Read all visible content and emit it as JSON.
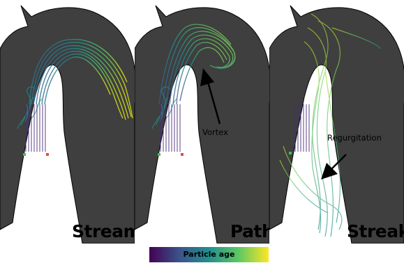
{
  "panels": [
    {
      "title": "Stream"
    },
    {
      "title": "Path",
      "annotation": "Vortex"
    },
    {
      "title": "Streak",
      "annotation": "Regurgitation"
    }
  ],
  "colorbar": {
    "label": "Particle age",
    "colors": [
      "#440154",
      "#3b528b",
      "#21908d",
      "#5dc863",
      "#fde725"
    ]
  },
  "colors": {
    "aorta_fill": "#3f3f3f",
    "aorta_outline": "#000000",
    "background": "#ffffff"
  }
}
